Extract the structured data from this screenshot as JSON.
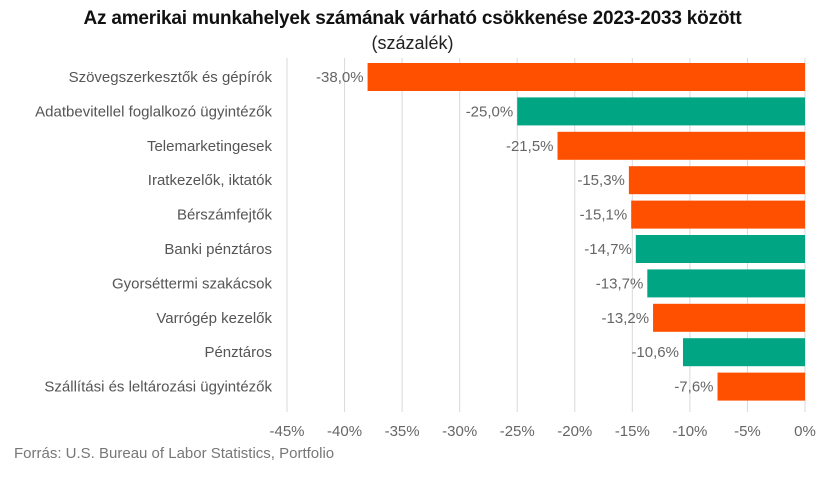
{
  "chart_data": {
    "type": "bar",
    "orientation": "horizontal",
    "title": "Az amerikai munkahelyek számának várható csökkenése 2023-2033 között",
    "subtitle": "(százalék)",
    "categories": [
      "Szövegszerkesztők és gépírók",
      "Adatbevitellel foglalkozó ügyintézők",
      "Telemarketingesek",
      "Iratkezelők, iktatók",
      "Bérszámfejtők",
      "Banki pénztáros",
      "Gyorséttermi szakácsok",
      "Varrógép kezelők",
      "Pénztáros",
      "Szállítási és leltározási ügyintézők"
    ],
    "values": [
      -38.0,
      -25.0,
      -21.5,
      -15.3,
      -15.1,
      -14.7,
      -13.7,
      -13.2,
      -10.6,
      -7.6
    ],
    "value_labels": [
      "-38,0%",
      "-25,0%",
      "-21,5%",
      "-15,3%",
      "-15,1%",
      "-14,7%",
      "-13,7%",
      "-13,2%",
      "-10,6%",
      "-7,6%"
    ],
    "bar_colors": [
      "#ff5000",
      "#00a584",
      "#ff5000",
      "#ff5000",
      "#ff5000",
      "#00a584",
      "#00a584",
      "#ff5000",
      "#00a584",
      "#ff5000"
    ],
    "xlim": [
      -45,
      0
    ],
    "x_ticks": [
      -45,
      -40,
      -35,
      -30,
      -25,
      -20,
      -15,
      -10,
      -5,
      0
    ],
    "x_tick_labels": [
      "-45%",
      "-40%",
      "-35%",
      "-30%",
      "-25%",
      "-20%",
      "-15%",
      "-10%",
      "-5%",
      "0%"
    ],
    "grid": "vertical",
    "xlabel": "",
    "ylabel": ""
  },
  "source": "Forrás: U.S. Bureau of Labor Statistics, Portfolio"
}
